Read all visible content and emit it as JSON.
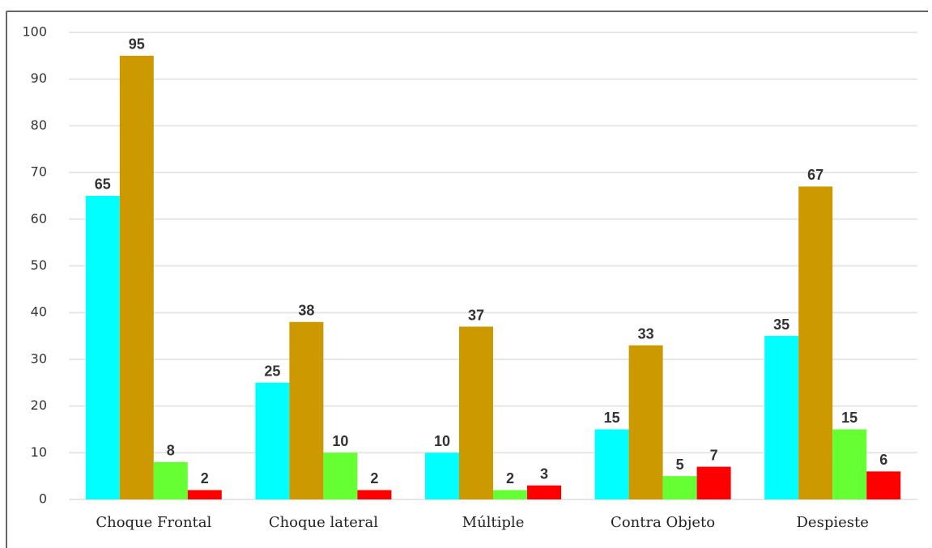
{
  "chart_data": {
    "type": "bar",
    "categories": [
      "Choque Frontal",
      "Choque lateral",
      "Múltiple",
      "Contra Objeto",
      "Despieste"
    ],
    "series": [
      {
        "color": "#00ffff",
        "values": [
          65,
          25,
          10,
          15,
          35
        ]
      },
      {
        "color": "#cc9900",
        "values": [
          95,
          38,
          37,
          33,
          67
        ]
      },
      {
        "color": "#66ff33",
        "values": [
          8,
          10,
          2,
          5,
          15
        ]
      },
      {
        "color": "#ff0000",
        "values": [
          2,
          2,
          3,
          7,
          6
        ]
      }
    ],
    "ylim": [
      0,
      100
    ],
    "yticks": [
      0,
      10,
      20,
      30,
      40,
      50,
      60,
      70,
      80,
      90,
      100
    ],
    "grid": true
  }
}
